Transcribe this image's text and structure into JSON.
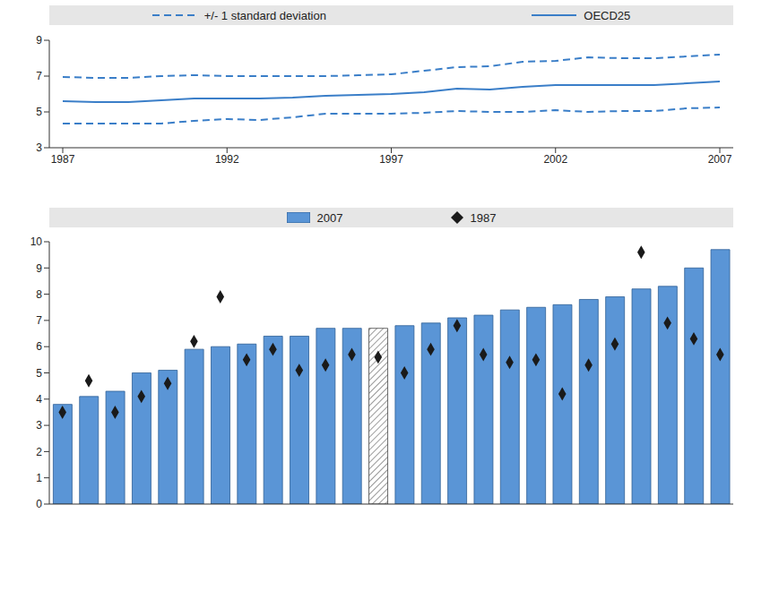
{
  "chart_data": [
    {
      "type": "line",
      "x": [
        1987,
        1988,
        1989,
        1990,
        1991,
        1992,
        1993,
        1994,
        1995,
        1996,
        1997,
        1998,
        1999,
        2000,
        2001,
        2002,
        2003,
        2004,
        2005,
        2006,
        2007
      ],
      "xlim": [
        1987,
        2007
      ],
      "xticks": [
        1987,
        1992,
        1997,
        2002,
        2007
      ],
      "ylim": [
        3,
        9
      ],
      "yticks": [
        3,
        5,
        7,
        9
      ],
      "grid": false,
      "series": [
        {
          "name": "+/- 1 standard deviation",
          "color": "#3a7ec8",
          "line_style": "dashed",
          "values": [
            6.95,
            6.9,
            6.9,
            7.0,
            7.05,
            7.0,
            7.0,
            7.0,
            7.0,
            7.05,
            7.1,
            7.3,
            7.5,
            7.55,
            7.8,
            7.85,
            8.05,
            8.0,
            8.0,
            8.1,
            8.2
          ],
          "lower": [
            4.35,
            4.35,
            4.35,
            4.35,
            4.5,
            4.6,
            4.55,
            4.7,
            4.9,
            4.9,
            4.9,
            4.95,
            5.05,
            5.0,
            5.0,
            5.1,
            5.0,
            5.05,
            5.05,
            5.2,
            5.25
          ]
        },
        {
          "name": "OECD25",
          "color": "#3a7ec8",
          "line_style": "solid",
          "values": [
            5.6,
            5.55,
            5.55,
            5.65,
            5.75,
            5.75,
            5.75,
            5.8,
            5.9,
            5.95,
            6.0,
            6.1,
            6.3,
            6.25,
            6.4,
            6.5,
            6.5,
            6.5,
            6.5,
            6.6,
            6.7
          ]
        }
      ]
    },
    {
      "type": "bar",
      "categories": [
        null,
        null,
        null,
        null,
        null,
        null,
        null,
        null,
        null,
        null,
        null,
        null,
        null,
        null,
        null,
        null,
        null,
        null,
        null,
        null,
        null,
        null,
        null,
        null,
        null,
        null
      ],
      "ylim": [
        0,
        10
      ],
      "yticks": [
        0,
        1,
        2,
        3,
        4,
        5,
        6,
        7,
        8,
        9,
        10
      ],
      "grid": false,
      "series": [
        {
          "name": "2007",
          "type": "bar",
          "color": "#5a95d6",
          "colors": [
            "#5a95d6",
            "#5a95d6",
            "#5a95d6",
            "#5a95d6",
            "#5a95d6",
            "#5a95d6",
            "#5a95d6",
            "#5a95d6",
            "#5a95d6",
            "#5a95d6",
            "#5a95d6",
            "#5a95d6",
            "#ffffff",
            "#5a95d6",
            "#5a95d6",
            "#5a95d6",
            "#5a95d6",
            "#5a95d6",
            "#5a95d6",
            "#5a95d6",
            "#5a95d6",
            "#5a95d6",
            "#5a95d6",
            "#5a95d6",
            "#5a95d6",
            "#5a95d6"
          ],
          "values": [
            3.8,
            4.1,
            4.3,
            5.0,
            5.1,
            5.9,
            6.0,
            6.1,
            6.4,
            6.4,
            6.7,
            6.7,
            6.7,
            6.8,
            6.9,
            7.1,
            7.2,
            7.4,
            7.5,
            7.6,
            7.8,
            7.9,
            8.2,
            8.3,
            9.0,
            9.7
          ]
        },
        {
          "name": "1987",
          "type": "scatter",
          "marker": "diamond",
          "color": "#1a1a1a",
          "values": [
            3.5,
            4.7,
            3.5,
            4.1,
            4.6,
            6.2,
            7.9,
            5.5,
            5.9,
            5.1,
            5.3,
            5.7,
            5.6,
            5.0,
            5.9,
            6.8,
            5.7,
            5.4,
            5.5,
            4.2,
            5.3,
            6.1,
            9.6,
            6.9,
            6.3,
            5.7
          ]
        }
      ]
    }
  ]
}
